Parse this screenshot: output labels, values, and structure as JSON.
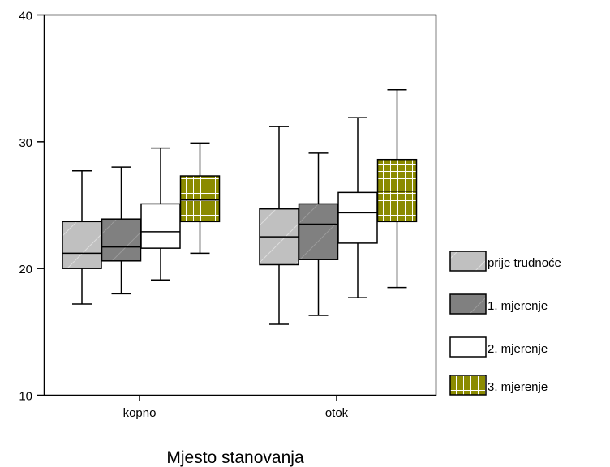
{
  "chart_data": {
    "type": "boxplot",
    "title": "",
    "xlabel": "Mjesto stanovanja",
    "ylabel": "",
    "ylim": [
      10,
      40
    ],
    "yticks": [
      10,
      20,
      30,
      40
    ],
    "categories": [
      "kopno",
      "otok"
    ],
    "grid": false,
    "legend_position": "right",
    "series": [
      {
        "name": "prije trudnoće",
        "color": "#c0c0c0",
        "pattern": "diagonal-light",
        "boxes": [
          {
            "min": 17.2,
            "q1": 20.0,
            "median": 21.2,
            "q3": 23.7,
            "max": 27.7
          },
          {
            "min": 15.6,
            "q1": 20.3,
            "median": 22.5,
            "q3": 24.7,
            "max": 31.2
          }
        ]
      },
      {
        "name": "1. mjerenje",
        "color": "#808080",
        "pattern": "diagonal-dark",
        "boxes": [
          {
            "min": 18.0,
            "q1": 20.6,
            "median": 21.7,
            "q3": 23.9,
            "max": 28.0
          },
          {
            "min": 16.3,
            "q1": 20.7,
            "median": 23.5,
            "q3": 25.1,
            "max": 29.1
          }
        ]
      },
      {
        "name": "2. mjerenje",
        "color": "#ffffff",
        "pattern": "none",
        "boxes": [
          {
            "min": 19.1,
            "q1": 21.6,
            "median": 22.9,
            "q3": 25.1,
            "max": 29.5
          },
          {
            "min": 17.7,
            "q1": 22.0,
            "median": 24.4,
            "q3": 26.0,
            "max": 31.9
          }
        ]
      },
      {
        "name": "3. mjerenje",
        "color": "#8b8b00",
        "pattern": "grid",
        "boxes": [
          {
            "min": 21.2,
            "q1": 23.7,
            "median": 25.4,
            "q3": 27.3,
            "max": 29.9
          },
          {
            "min": 18.5,
            "q1": 23.7,
            "median": 26.1,
            "q3": 28.6,
            "max": 34.1
          }
        ]
      }
    ]
  }
}
